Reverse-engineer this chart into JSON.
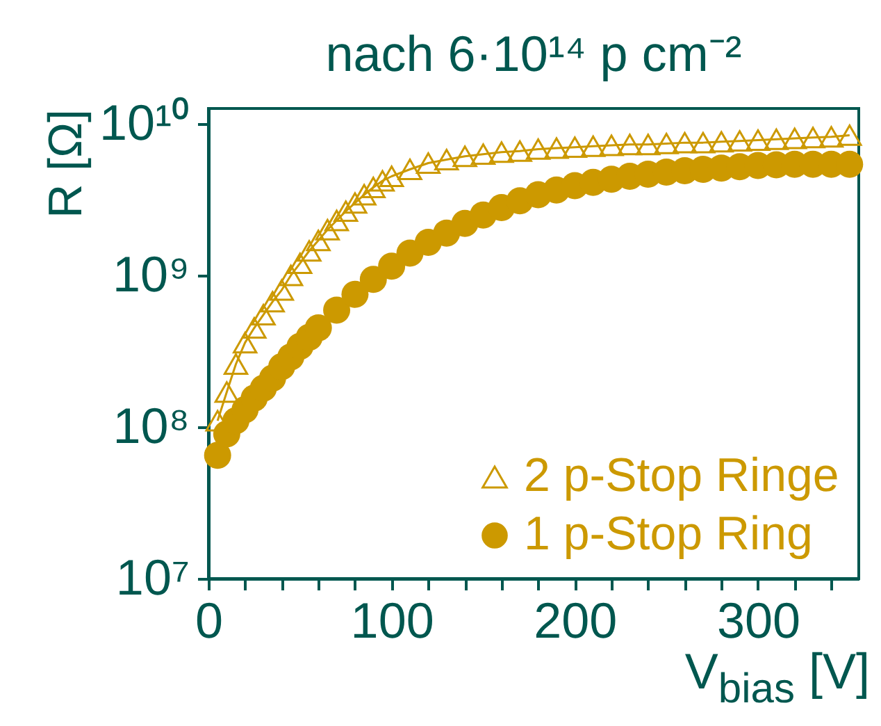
{
  "chart_data": {
    "type": "scatter",
    "title": "nach 6·10¹⁴ p cm⁻²",
    "xlabel": "V$_{bias}$ [V]",
    "ylabel": "R [Ω]",
    "log": "y",
    "grid": false,
    "legend": "bottom right",
    "xlim": [
      0,
      355
    ],
    "xticks": [
      0,
      {
        "value": 20,
        "label": null
      },
      {
        "value": 40,
        "label": null
      },
      {
        "value": 60,
        "label": null
      },
      {
        "value": 80,
        "label": null
      },
      100,
      {
        "value": 120,
        "label": null
      },
      {
        "value": 140,
        "label": null
      },
      {
        "value": 160,
        "label": null
      },
      {
        "value": 180,
        "label": null
      },
      200,
      {
        "value": 220,
        "label": null
      },
      {
        "value": 240,
        "label": null
      },
      {
        "value": 260,
        "label": null
      },
      {
        "value": 280,
        "label": null
      },
      300,
      {
        "value": 320,
        "label": null
      },
      {
        "value": 340,
        "label": null
      }
    ],
    "ylim": [
      10000000,
      12600000000
    ],
    "yticks": [
      {
        "value": 10000000,
        "label": "10⁷"
      },
      {
        "value": 100000000,
        "label": "10⁸"
      },
      {
        "value": 1000000000,
        "label": "10⁹"
      },
      {
        "value": 10000000000,
        "label": "10¹⁰"
      }
    ],
    "series": [
      {
        "name": "2 p-Stop Ringe",
        "type": "line",
        "marker": "triangle",
        "color": "#cc9900",
        "x": [
          5,
          10,
          15,
          20,
          25,
          30,
          35,
          40,
          45,
          50,
          55,
          60,
          65,
          70,
          75,
          80,
          85,
          90,
          95,
          100,
          110,
          120,
          130,
          140,
          150,
          160,
          170,
          180,
          190,
          200,
          210,
          220,
          230,
          240,
          250,
          260,
          270,
          280,
          290,
          300,
          310,
          320,
          330,
          340,
          350
        ],
        "values": [
          110000000,
          170000000,
          260000000,
          360000000,
          450000000,
          550000000,
          670000000,
          800000000,
          1000000000,
          1200000000,
          1450000000,
          1700000000,
          2000000000,
          2300000000,
          2650000000,
          3000000000,
          3400000000,
          3800000000,
          4200000000,
          4500000000,
          5000000000,
          5500000000,
          5800000000,
          6100000000,
          6300000000,
          6500000000,
          6600000000,
          6800000000,
          6900000000,
          7000000000,
          7100000000,
          7200000000,
          7300000000,
          7300000000,
          7400000000,
          7500000000,
          7500000000,
          7600000000,
          7700000000,
          7800000000,
          7900000000,
          8000000000,
          8100000000,
          8200000000,
          8400000000
        ]
      },
      {
        "name": "1 p-Stop Ring",
        "type": "scatter",
        "marker": "circle",
        "color": "#cc9900",
        "x": [
          5,
          10,
          15,
          20,
          25,
          30,
          35,
          40,
          45,
          50,
          55,
          60,
          70,
          80,
          90,
          100,
          110,
          120,
          130,
          140,
          150,
          160,
          170,
          180,
          190,
          200,
          210,
          220,
          230,
          240,
          250,
          260,
          270,
          280,
          290,
          300,
          310,
          320,
          330,
          340,
          350
        ],
        "values": [
          65000000,
          90000000,
          110000000,
          130000000,
          155000000,
          180000000,
          210000000,
          250000000,
          290000000,
          340000000,
          390000000,
          450000000,
          590000000,
          750000000,
          940000000,
          1150000000,
          1400000000,
          1650000000,
          1900000000,
          2200000000,
          2500000000,
          2800000000,
          3100000000,
          3400000000,
          3650000000,
          3900000000,
          4100000000,
          4300000000,
          4500000000,
          4650000000,
          4800000000,
          4900000000,
          5000000000,
          5100000000,
          5200000000,
          5300000000,
          5350000000,
          5400000000,
          5400000000,
          5400000000,
          5400000000
        ]
      }
    ]
  }
}
